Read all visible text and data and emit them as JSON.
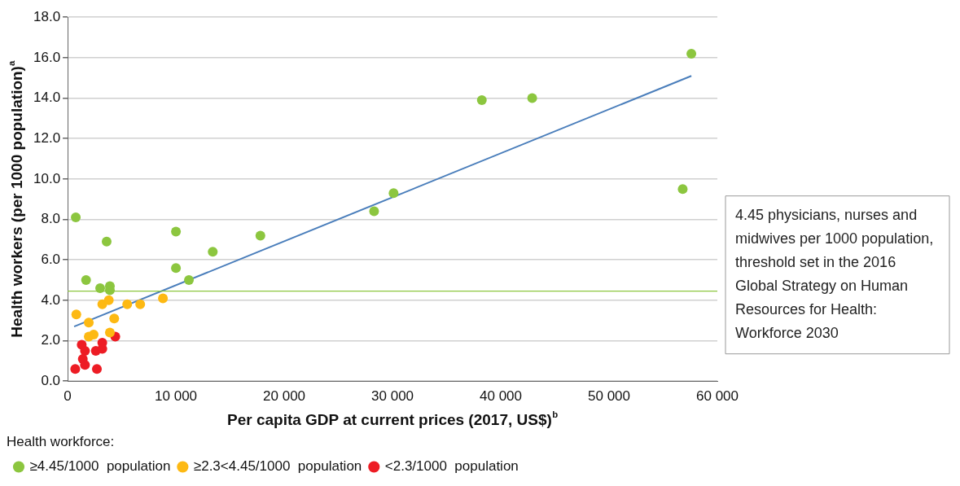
{
  "chart_data": {
    "type": "scatter",
    "xlabel": "Per capita GDP at current prices (2017, US$)$^{b}$",
    "ylabel": "Health workers (per 1000 population)$^{a}$",
    "legend_title": "Health workforce:",
    "legend": "bottom",
    "grid": "y",
    "marker": "circle",
    "xlim": [
      0,
      60000
    ],
    "xticks": [
      {
        "value": 0,
        "label": "0"
      },
      {
        "value": 10000,
        "label": "10 000"
      },
      {
        "value": 20000,
        "label": "20 000"
      },
      {
        "value": 30000,
        "label": "30 000"
      },
      {
        "value": 40000,
        "label": "40 000"
      },
      {
        "value": 50000,
        "label": "50 000"
      },
      {
        "value": 60000,
        "label": "60 000"
      }
    ],
    "ylim": [
      0,
      18
    ],
    "yticks": [
      {
        "value": 0,
        "label": "0.0"
      },
      {
        "value": 2,
        "label": "2.0"
      },
      {
        "value": 4,
        "label": "4.0"
      },
      {
        "value": 6,
        "label": "6.0"
      },
      {
        "value": 8,
        "label": "8.0"
      },
      {
        "value": 10,
        "label": "10.0"
      },
      {
        "value": 12,
        "label": "12.0"
      },
      {
        "value": 14,
        "label": "14.0"
      },
      {
        "value": 16,
        "label": "16.0"
      },
      {
        "value": 18,
        "label": "18.0"
      }
    ],
    "ref_lines": [
      {
        "axis": "y",
        "value": 4.45,
        "color": "#8cc63f",
        "label": "4.45 physicians, nurses and midwives per 1000 population, threshold set in the 2016 Global Strategy on Human Resources for Health: Workforce 2030"
      }
    ],
    "series": [
      {
        "name": "≥4.45/1000  population",
        "color": "#8cc63f",
        "x": [
          750,
          3600,
          1700,
          3000,
          3900,
          3900,
          10000,
          10000,
          11200,
          13400,
          17800,
          28300,
          30100,
          38250,
          42900,
          56800,
          57600
        ],
        "values": [
          8.1,
          6.9,
          5.0,
          4.6,
          4.7,
          4.5,
          7.4,
          5.6,
          5.0,
          6.4,
          7.2,
          8.4,
          9.3,
          13.9,
          14.0,
          9.5,
          16.2
        ]
      },
      {
        "name": "≥2.3<4.45/1000  population",
        "color": "#fdb913",
        "x": [
          800,
          1950,
          1950,
          2300,
          2400,
          3200,
          3800,
          4300,
          3900,
          5500,
          6700,
          8800
        ],
        "values": [
          3.3,
          2.9,
          2.2,
          null,
          2.3,
          3.8,
          4.0,
          3.1,
          2.4,
          3.8,
          3.8,
          4.1
        ]
      },
      {
        "name": "<2.3/1000  population",
        "color": "#ed1c24",
        "x": [
          700,
          1300,
          1600,
          1400,
          1600,
          2700,
          2600,
          3200,
          3200,
          4400
        ],
        "values": [
          0.6,
          1.8,
          1.5,
          1.1,
          0.8,
          0.6,
          1.5,
          1.9,
          1.6,
          2.2
        ]
      },
      {
        "type": "line",
        "marker": "none",
        "color": "#4a7ebb",
        "x": [
          600,
          57600
        ],
        "values": [
          2.7,
          15.1
        ]
      }
    ]
  }
}
